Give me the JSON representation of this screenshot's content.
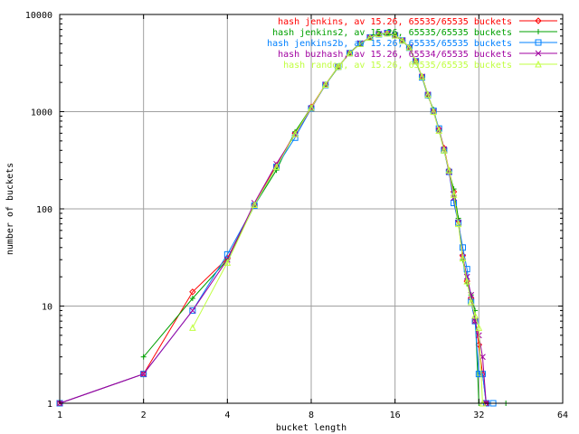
{
  "chart_data": {
    "type": "line",
    "title": "",
    "xlabel": "bucket length",
    "ylabel": "number of buckets",
    "xscale": "log2",
    "yscale": "log10",
    "xlim": [
      1,
      64
    ],
    "ylim": [
      1,
      10000
    ],
    "xticks": [
      1,
      2,
      4,
      8,
      16,
      32,
      64
    ],
    "yticks": [
      1,
      10,
      100,
      1000,
      10000
    ],
    "xtick_labels": [
      "1",
      "2",
      "4",
      "8",
      "16",
      "32",
      "64"
    ],
    "ytick_labels": [
      "1",
      "10",
      "100",
      "1000",
      "10000"
    ],
    "grid": true,
    "legend_position": "top-right",
    "series": [
      {
        "name": "hash jenkins, av 15.26, 65535/65535 buckets",
        "color": "#ff0000",
        "marker": "diamond",
        "points": [
          [
            1,
            1
          ],
          [
            2,
            2
          ],
          [
            3,
            14
          ],
          [
            4,
            31
          ],
          [
            5,
            110
          ],
          [
            6,
            280
          ],
          [
            7,
            600
          ],
          [
            8,
            1120
          ],
          [
            9,
            1900
          ],
          [
            10,
            2900
          ],
          [
            11,
            4000
          ],
          [
            12,
            5000
          ],
          [
            13,
            5800
          ],
          [
            14,
            6300
          ],
          [
            15,
            6400
          ],
          [
            16,
            6100
          ],
          [
            17,
            5400
          ],
          [
            18,
            4600
          ],
          [
            19,
            3300
          ],
          [
            20,
            2300
          ],
          [
            21,
            1500
          ],
          [
            22,
            1000
          ],
          [
            23,
            660
          ],
          [
            24,
            420
          ],
          [
            25,
            250
          ],
          [
            26,
            150
          ],
          [
            27,
            75
          ],
          [
            28,
            33
          ],
          [
            29,
            18
          ],
          [
            30,
            12
          ],
          [
            31,
            7
          ],
          [
            32,
            4
          ],
          [
            33,
            2
          ],
          [
            34,
            1
          ]
        ]
      },
      {
        "name": "hash jenkins2, av 15.26, 65535/65535 buckets",
        "color": "#00a000",
        "marker": "plus",
        "points": [
          [
            2,
            3
          ],
          [
            3,
            12
          ],
          [
            4,
            30
          ],
          [
            5,
            108
          ],
          [
            6,
            250
          ],
          [
            7,
            620
          ],
          [
            8,
            1100
          ],
          [
            9,
            1880
          ],
          [
            10,
            2850
          ],
          [
            11,
            4050
          ],
          [
            12,
            5050
          ],
          [
            13,
            5750
          ],
          [
            14,
            6250
          ],
          [
            15,
            6350
          ],
          [
            16,
            6050
          ],
          [
            17,
            5350
          ],
          [
            18,
            4550
          ],
          [
            19,
            3250
          ],
          [
            20,
            2250
          ],
          [
            21,
            1450
          ],
          [
            22,
            1050
          ],
          [
            23,
            640
          ],
          [
            24,
            400
          ],
          [
            25,
            240
          ],
          [
            26,
            160
          ],
          [
            27,
            80
          ],
          [
            28,
            30
          ],
          [
            29,
            17
          ],
          [
            30,
            13
          ],
          [
            31,
            9
          ],
          [
            32,
            1
          ],
          [
            40,
            1
          ]
        ]
      },
      {
        "name": "hash jenkins2b, av 15.26, 65535/65535 buckets",
        "color": "#0080ff",
        "marker": "square",
        "points": [
          [
            1,
            1
          ],
          [
            2,
            2
          ],
          [
            3,
            9
          ],
          [
            4,
            34
          ],
          [
            5,
            108
          ],
          [
            6,
            270
          ],
          [
            7,
            540
          ],
          [
            8,
            1080
          ],
          [
            9,
            1880
          ],
          [
            10,
            2900
          ],
          [
            11,
            4000
          ],
          [
            12,
            5000
          ],
          [
            13,
            5800
          ],
          [
            14,
            6250
          ],
          [
            15,
            6450
          ],
          [
            16,
            6100
          ],
          [
            17,
            5400
          ],
          [
            18,
            4550
          ],
          [
            19,
            3300
          ],
          [
            20,
            2250
          ],
          [
            21,
            1480
          ],
          [
            22,
            1020
          ],
          [
            23,
            670
          ],
          [
            24,
            400
          ],
          [
            25,
            240
          ],
          [
            26,
            115
          ],
          [
            27,
            72
          ],
          [
            28,
            40
          ],
          [
            29,
            24
          ],
          [
            30,
            11
          ],
          [
            31,
            7
          ],
          [
            32,
            2
          ],
          [
            33,
            2
          ],
          [
            34,
            1
          ],
          [
            36,
            1
          ]
        ]
      },
      {
        "name": "hash buzhash, av 15.26, 65534/65535 buckets",
        "color": "#a000a0",
        "marker": "cross",
        "points": [
          [
            1,
            1
          ],
          [
            2,
            2
          ],
          [
            3,
            9
          ],
          [
            4,
            30
          ],
          [
            5,
            115
          ],
          [
            6,
            290
          ],
          [
            7,
            580
          ],
          [
            8,
            1080
          ],
          [
            9,
            1900
          ],
          [
            10,
            2900
          ],
          [
            11,
            4000
          ],
          [
            12,
            5050
          ],
          [
            13,
            5800
          ],
          [
            14,
            6300
          ],
          [
            15,
            6400
          ],
          [
            16,
            6100
          ],
          [
            17,
            5400
          ],
          [
            18,
            4600
          ],
          [
            19,
            3300
          ],
          [
            20,
            2300
          ],
          [
            21,
            1500
          ],
          [
            22,
            1000
          ],
          [
            23,
            640
          ],
          [
            24,
            410
          ],
          [
            25,
            240
          ],
          [
            26,
            130
          ],
          [
            27,
            72
          ],
          [
            28,
            32
          ],
          [
            29,
            20
          ],
          [
            30,
            13
          ],
          [
            31,
            7
          ],
          [
            32,
            5
          ],
          [
            33,
            3
          ],
          [
            34,
            1
          ]
        ]
      },
      {
        "name": "hash random, av 15.26, 65535/65535 buckets",
        "color": "#c0ff40",
        "marker": "triangle",
        "points": [
          [
            3,
            6
          ],
          [
            4,
            28
          ],
          [
            5,
            110
          ],
          [
            6,
            270
          ],
          [
            7,
            590
          ],
          [
            8,
            1100
          ],
          [
            9,
            1900
          ],
          [
            10,
            2900
          ],
          [
            11,
            4000
          ],
          [
            12,
            5000
          ],
          [
            13,
            5800
          ],
          [
            14,
            6300
          ],
          [
            15,
            6400
          ],
          [
            16,
            6100
          ],
          [
            17,
            5400
          ],
          [
            18,
            4600
          ],
          [
            19,
            3300
          ],
          [
            20,
            2300
          ],
          [
            21,
            1500
          ],
          [
            22,
            1000
          ],
          [
            23,
            640
          ],
          [
            24,
            400
          ],
          [
            25,
            250
          ],
          [
            26,
            140
          ],
          [
            27,
            70
          ],
          [
            28,
            31
          ],
          [
            29,
            18
          ],
          [
            30,
            11
          ],
          [
            31,
            8
          ],
          [
            32,
            6
          ],
          [
            33,
            1
          ]
        ]
      }
    ]
  }
}
